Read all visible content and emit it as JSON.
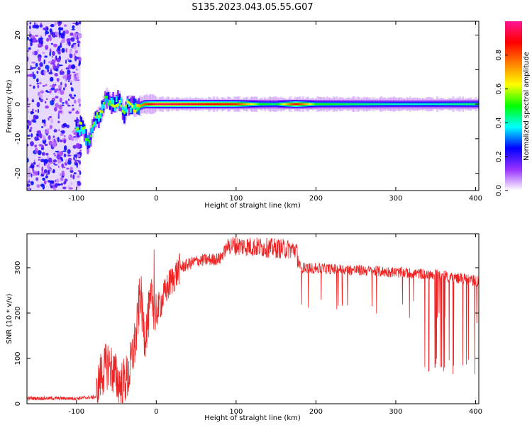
{
  "title": "S135.2023.043.05.55.G07",
  "colors": {
    "snr_line": "#ee2222",
    "spectrogram_core": "#ff2020",
    "spectrogram_edge": "#b070ff",
    "axis": "#000000"
  },
  "chart_data": [
    {
      "type": "heatmap",
      "title": "S135.2023.043.05.55.G07",
      "xlabel": "Height of straight line (km)",
      "ylabel": "Frequency (Hz)",
      "xlim": [
        -162,
        404
      ],
      "ylim": [
        -25,
        24
      ],
      "x_ticks": [
        -100,
        0,
        100,
        200,
        300,
        400
      ],
      "y_ticks": [
        -20,
        -10,
        0,
        10,
        20
      ],
      "colorbar": {
        "label": "Normalized spectral amplitude",
        "range": [
          0,
          1
        ],
        "ticks": [
          0.0,
          0.2,
          0.4,
          0.6,
          0.8
        ],
        "colors": [
          "#ffffff",
          "#9932ff",
          "#0000ff",
          "#00ffff",
          "#00ff00",
          "#ffff00",
          "#ff8000",
          "#ff0000",
          "#ff1493"
        ]
      },
      "noise_region_x": [
        -162,
        -100
      ],
      "ridge": [
        {
          "x": -100,
          "y": -8,
          "amp": 0.55
        },
        {
          "x": -93,
          "y": -6,
          "amp": 0.6
        },
        {
          "x": -85,
          "y": -12,
          "amp": 0.5
        },
        {
          "x": -78,
          "y": -5,
          "amp": 0.55
        },
        {
          "x": -70,
          "y": -3,
          "amp": 0.6
        },
        {
          "x": -62,
          "y": 2,
          "amp": 0.5
        },
        {
          "x": -55,
          "y": 0,
          "amp": 0.6
        },
        {
          "x": -45,
          "y": 1,
          "amp": 0.6
        },
        {
          "x": -40,
          "y": -3,
          "amp": 0.55
        },
        {
          "x": -35,
          "y": 0,
          "amp": 0.6
        },
        {
          "x": -25,
          "y": -1,
          "amp": 0.65
        },
        {
          "x": -15,
          "y": 0,
          "amp": 0.8
        },
        {
          "x": 0,
          "y": 0,
          "amp": 0.95
        },
        {
          "x": 50,
          "y": 0,
          "amp": 0.9
        },
        {
          "x": 100,
          "y": 0,
          "amp": 0.85
        },
        {
          "x": 130,
          "y": 0,
          "amp": 0.5
        },
        {
          "x": 150,
          "y": 0,
          "amp": 0.45
        },
        {
          "x": 175,
          "y": 0,
          "amp": 0.9
        },
        {
          "x": 200,
          "y": 0,
          "amp": 0.5
        },
        {
          "x": 250,
          "y": 0,
          "amp": 0.45
        },
        {
          "x": 300,
          "y": 0,
          "amp": 0.4
        },
        {
          "x": 350,
          "y": 0,
          "amp": 0.4
        },
        {
          "x": 404,
          "y": 0,
          "amp": 0.45
        }
      ]
    },
    {
      "type": "line",
      "xlabel": "Height of straight line (km)",
      "ylabel": "SNR (10 * v/v)",
      "xlim": [
        -162,
        404
      ],
      "ylim": [
        0,
        375
      ],
      "x_ticks": [
        -100,
        0,
        100,
        200,
        300,
        400
      ],
      "y_ticks": [
        0,
        100,
        200,
        300
      ],
      "series": [
        {
          "color": "#ee2222",
          "points": [
            {
              "x": -162,
              "y": 12
            },
            {
              "x": -130,
              "y": 12
            },
            {
              "x": -100,
              "y": 12
            },
            {
              "x": -75,
              "y": 15
            },
            {
              "x": -70,
              "y": 60
            },
            {
              "x": -60,
              "y": 90
            },
            {
              "x": -45,
              "y": 40
            },
            {
              "x": -35,
              "y": 60
            },
            {
              "x": -25,
              "y": 150
            },
            {
              "x": -20,
              "y": 250
            },
            {
              "x": -15,
              "y": 150
            },
            {
              "x": -5,
              "y": 230
            },
            {
              "x": 0,
              "y": 200
            },
            {
              "x": 5,
              "y": 220
            },
            {
              "x": 15,
              "y": 260
            },
            {
              "x": 30,
              "y": 300
            },
            {
              "x": 50,
              "y": 315
            },
            {
              "x": 80,
              "y": 320
            },
            {
              "x": 90,
              "y": 350
            },
            {
              "x": 130,
              "y": 345
            },
            {
              "x": 175,
              "y": 340
            },
            {
              "x": 180,
              "y": 300
            },
            {
              "x": 250,
              "y": 295
            },
            {
              "x": 300,
              "y": 290
            },
            {
              "x": 350,
              "y": 285
            },
            {
              "x": 404,
              "y": 270
            }
          ]
        }
      ]
    }
  ]
}
